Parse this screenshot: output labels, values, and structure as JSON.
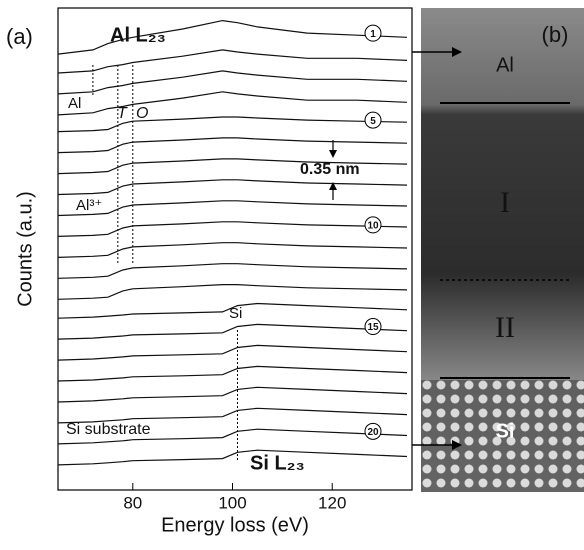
{
  "chart_data": {
    "type": "line",
    "panel_label": "(a)",
    "x_label": "Energy loss (eV)",
    "y_label": "Counts (a.u.)",
    "xlim": [
      65,
      136
    ],
    "xticks": [
      80,
      100,
      120
    ],
    "ylim": [
      0,
      23
    ],
    "x": [
      65,
      72,
      75,
      78,
      80,
      90,
      98,
      101,
      105,
      115,
      125,
      135
    ],
    "color": "#111111",
    "edge_markers": [
      72,
      77,
      80,
      101
    ],
    "series": [
      {
        "label": "1",
        "values": [
          20.8,
          21.0,
          21.3,
          21.5,
          21.6,
          22.0,
          22.4,
          22.3,
          22.1,
          21.8,
          21.7,
          21.6
        ]
      },
      {
        "values": [
          19.9,
          20.0,
          20.2,
          20.3,
          20.4,
          20.7,
          21.0,
          20.9,
          20.8,
          20.6,
          20.6,
          20.5
        ]
      },
      {
        "values": [
          18.9,
          19.0,
          19.2,
          19.3,
          19.4,
          19.7,
          20.0,
          19.9,
          19.8,
          19.6,
          19.6,
          19.5
        ]
      },
      {
        "values": [
          17.9,
          18.0,
          18.2,
          18.3,
          18.4,
          18.7,
          19.0,
          18.9,
          18.8,
          18.6,
          18.6,
          18.5
        ]
      },
      {
        "label": "5",
        "values": [
          17.1,
          17.15,
          17.2,
          17.5,
          17.6,
          17.7,
          17.8,
          17.8,
          17.75,
          17.65,
          17.6,
          17.55
        ]
      },
      {
        "values": [
          16.1,
          16.15,
          16.2,
          16.5,
          16.6,
          16.7,
          16.8,
          16.8,
          16.75,
          16.65,
          16.6,
          16.55
        ]
      },
      {
        "values": [
          15.1,
          15.15,
          15.2,
          15.5,
          15.6,
          15.7,
          15.8,
          15.8,
          15.75,
          15.65,
          15.6,
          15.55
        ]
      },
      {
        "values": [
          14.1,
          14.15,
          14.2,
          14.5,
          14.6,
          14.7,
          14.8,
          14.8,
          14.75,
          14.65,
          14.6,
          14.55
        ]
      },
      {
        "values": [
          13.1,
          13.15,
          13.2,
          13.5,
          13.6,
          13.7,
          13.8,
          13.8,
          13.75,
          13.65,
          13.6,
          13.55
        ]
      },
      {
        "label": "10",
        "values": [
          12.1,
          12.15,
          12.2,
          12.5,
          12.6,
          12.7,
          12.8,
          12.8,
          12.75,
          12.65,
          12.6,
          12.55
        ]
      },
      {
        "values": [
          11.1,
          11.15,
          11.2,
          11.5,
          11.6,
          11.7,
          11.8,
          11.8,
          11.75,
          11.65,
          11.6,
          11.55
        ]
      },
      {
        "values": [
          10.1,
          10.15,
          10.2,
          10.5,
          10.6,
          10.7,
          10.8,
          10.8,
          10.75,
          10.65,
          10.6,
          10.55
        ]
      },
      {
        "values": [
          9.1,
          9.15,
          9.2,
          9.5,
          9.6,
          9.7,
          9.8,
          9.8,
          9.75,
          9.65,
          9.6,
          9.55
        ]
      },
      {
        "values": [
          8.2,
          8.25,
          8.3,
          8.35,
          8.4,
          8.45,
          8.5,
          8.8,
          8.9,
          8.8,
          8.7,
          8.6
        ]
      },
      {
        "label": "15",
        "values": [
          7.2,
          7.25,
          7.3,
          7.35,
          7.4,
          7.45,
          7.5,
          7.8,
          7.9,
          7.8,
          7.7,
          7.6
        ]
      },
      {
        "values": [
          6.2,
          6.25,
          6.3,
          6.35,
          6.4,
          6.45,
          6.5,
          6.8,
          6.9,
          6.8,
          6.7,
          6.6
        ]
      },
      {
        "values": [
          5.2,
          5.25,
          5.3,
          5.35,
          5.4,
          5.45,
          5.5,
          5.8,
          5.9,
          5.8,
          5.7,
          5.6
        ]
      },
      {
        "values": [
          4.2,
          4.25,
          4.3,
          4.35,
          4.4,
          4.45,
          4.5,
          4.8,
          4.9,
          4.8,
          4.7,
          4.6
        ]
      },
      {
        "values": [
          3.2,
          3.25,
          3.3,
          3.35,
          3.4,
          3.45,
          3.5,
          3.8,
          3.9,
          3.8,
          3.7,
          3.6
        ]
      },
      {
        "label": "20",
        "values": [
          2.2,
          2.25,
          2.3,
          2.35,
          2.4,
          2.45,
          2.5,
          2.8,
          2.9,
          2.8,
          2.7,
          2.6
        ]
      },
      {
        "values": [
          1.2,
          1.25,
          1.3,
          1.35,
          1.4,
          1.45,
          1.5,
          1.8,
          1.9,
          1.8,
          1.7,
          1.6
        ]
      }
    ],
    "annotations": [
      "Al L₂₃",
      "Al",
      "T",
      "O",
      "0.35 nm",
      "Al³⁺",
      "Si",
      "Si substrate",
      "Si L₂₃"
    ]
  },
  "panel_b": {
    "panel_label": "(b)",
    "regions": [
      "Al",
      "I",
      "II",
      "Si"
    ]
  }
}
